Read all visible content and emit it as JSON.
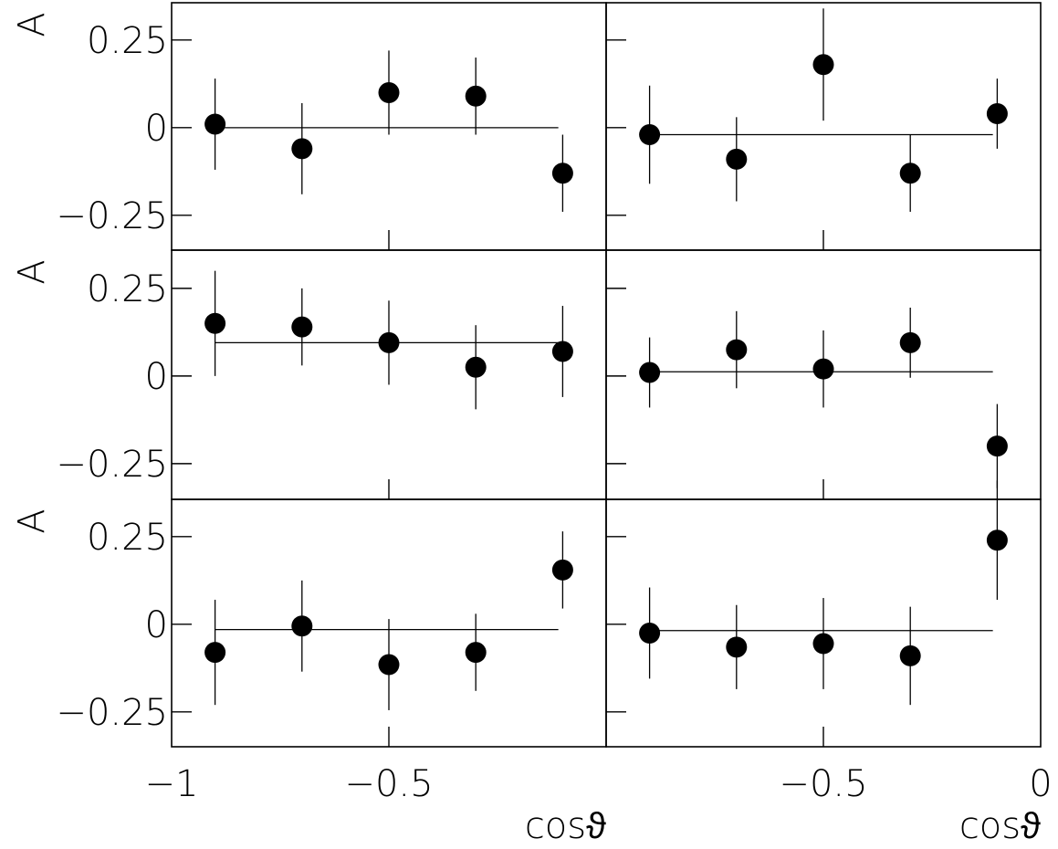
{
  "chart_data": {
    "type": "scatter",
    "layout": "3 rows x 2 columns of panels with shared axes",
    "ylabel": "A",
    "xlabel": "cosϑ",
    "ylim": [
      -0.35,
      0.35
    ],
    "y_ticks": [
      -0.25,
      0,
      0.25
    ],
    "y_tick_labels": [
      "−0.25",
      "0",
      "0.25"
    ],
    "left_xlim": [
      -1,
      0
    ],
    "left_x_ticks": [
      -1,
      -0.5
    ],
    "left_x_tick_labels": [
      "−1",
      "−0.5"
    ],
    "right_xlim": [
      -1,
      0
    ],
    "right_x_ticks": [
      -0.5,
      0
    ],
    "right_x_tick_labels": [
      "−0.5",
      "0"
    ],
    "grid": false,
    "panels": [
      {
        "row": 0,
        "col": 0,
        "x": [
          -0.9,
          -0.7,
          -0.5,
          -0.3,
          -0.1
        ],
        "y": [
          0.01,
          -0.06,
          0.1,
          0.09,
          -0.13
        ],
        "err": [
          0.13,
          0.13,
          0.12,
          0.11,
          0.11
        ],
        "fit": {
          "y": 0.0,
          "x_range": [
            -0.9,
            -0.11
          ]
        }
      },
      {
        "row": 0,
        "col": 1,
        "x": [
          -0.9,
          -0.7,
          -0.5,
          -0.3,
          -0.1
        ],
        "y": [
          -0.02,
          -0.09,
          0.18,
          -0.13,
          0.04
        ],
        "err": [
          0.14,
          0.12,
          0.16,
          0.11,
          0.1
        ],
        "fit": {
          "y": -0.02,
          "x_range": [
            -0.9,
            -0.11
          ]
        }
      },
      {
        "row": 1,
        "col": 0,
        "x": [
          -0.9,
          -0.7,
          -0.5,
          -0.3,
          -0.1
        ],
        "y": [
          0.15,
          0.14,
          0.095,
          0.025,
          0.07
        ],
        "err": [
          0.15,
          0.11,
          0.12,
          0.12,
          0.13
        ],
        "fit": {
          "y": 0.095,
          "x_range": [
            -0.9,
            -0.11
          ]
        }
      },
      {
        "row": 1,
        "col": 1,
        "x": [
          -0.9,
          -0.7,
          -0.5,
          -0.3,
          -0.1
        ],
        "y": [
          0.01,
          0.075,
          0.02,
          0.095,
          -0.2
        ],
        "err": [
          0.1,
          0.11,
          0.11,
          0.1,
          0.12
        ],
        "fit": {
          "y": 0.012,
          "x_range": [
            -0.9,
            -0.11
          ]
        }
      },
      {
        "row": 2,
        "col": 0,
        "x": [
          -0.9,
          -0.7,
          -0.5,
          -0.3,
          -0.1
        ],
        "y": [
          -0.08,
          -0.005,
          -0.115,
          -0.08,
          0.155
        ],
        "err": [
          0.15,
          0.13,
          0.13,
          0.11,
          0.11
        ],
        "fit": {
          "y": -0.015,
          "x_range": [
            -0.9,
            -0.11
          ]
        }
      },
      {
        "row": 2,
        "col": 1,
        "x": [
          -0.9,
          -0.7,
          -0.5,
          -0.3,
          -0.1
        ],
        "y": [
          -0.025,
          -0.065,
          -0.055,
          -0.09,
          0.24
        ],
        "err": [
          0.13,
          0.12,
          0.13,
          0.14,
          0.17
        ],
        "fit": {
          "y": -0.018,
          "x_range": [
            -0.9,
            -0.11
          ]
        }
      }
    ]
  }
}
